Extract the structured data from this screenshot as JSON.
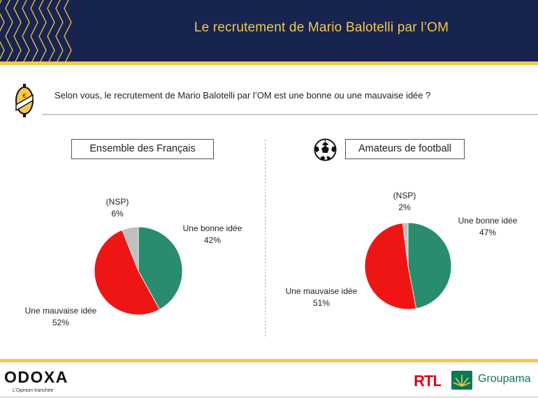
{
  "header": {
    "title": "Le recrutement de Mario Balotelli par l’OM"
  },
  "question": "Selon vous, le recrutement de Mario Balotelli par l’OM est une bonne ou une mauvaise idée ?",
  "colors": {
    "navy": "#17244f",
    "gold": "#f5c74b",
    "green": "#2a8c6e",
    "red": "#f01515",
    "gray": "#bfbfbf"
  },
  "chart_data": [
    {
      "type": "pie",
      "title": "Ensemble des Français",
      "slices": [
        {
          "label": "Une bonne idée",
          "pct": "42%",
          "value": 42,
          "color": "#2a8c6e"
        },
        {
          "label": "Une mauvaise idée",
          "pct": "52%",
          "value": 52,
          "color": "#f01515"
        },
        {
          "label": "(NSP)",
          "pct": "6%",
          "value": 6,
          "color": "#bfbfbf"
        }
      ]
    },
    {
      "type": "pie",
      "title": "Amateurs de football",
      "slices": [
        {
          "label": "Une bonne idée",
          "pct": "47%",
          "value": 47,
          "color": "#2a8c6e"
        },
        {
          "label": "Une mauvaise idée",
          "pct": "51%",
          "value": 51,
          "color": "#f01515"
        },
        {
          "label": "(NSP)",
          "pct": "2%",
          "value": 2,
          "color": "#bfbfbf"
        }
      ]
    }
  ],
  "footer": {
    "odoxa": "ODOXA",
    "odoxa_tagline": "L’Opinion tranchée",
    "rtl": "RTL",
    "groupama": "Groupama"
  },
  "icons": {
    "question": "odoxa-coin-icon",
    "ball": "football-icon"
  }
}
